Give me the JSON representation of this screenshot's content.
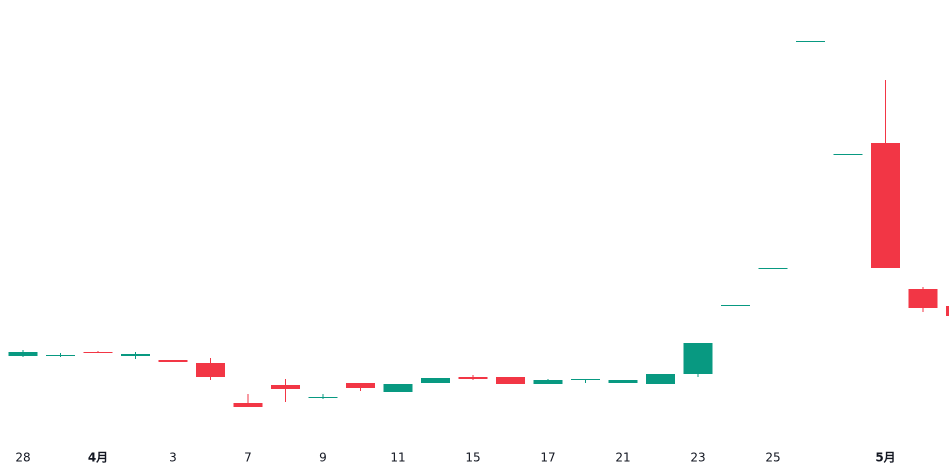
{
  "chart_data": {
    "type": "candlestick",
    "categories": [
      "28",
      null,
      "4月",
      null,
      "3",
      null,
      "7",
      null,
      "9",
      null,
      "11",
      null,
      "15",
      null,
      "17",
      null,
      "21",
      null,
      "23",
      null,
      "25",
      null,
      null,
      "5月",
      null,
      null
    ],
    "open": [
      94,
      94,
      98,
      94,
      90,
      87,
      47,
      65,
      52,
      67,
      58,
      67,
      73,
      73,
      66,
      70,
      67,
      66,
      76,
      144,
      182,
      409,
      296,
      307,
      161,
      144
    ],
    "high": [
      100,
      97,
      99,
      98,
      90,
      92,
      56,
      71,
      56,
      67,
      66,
      72,
      75,
      73,
      71,
      71,
      70,
      76,
      107,
      145,
      182,
      409,
      296,
      370,
      163,
      144
    ],
    "low": [
      93,
      93,
      97,
      91,
      88,
      70,
      43,
      48,
      51,
      59,
      58,
      67,
      70,
      66,
      66,
      67,
      67,
      66,
      73,
      144,
      182,
      409,
      296,
      182,
      138,
      134
    ],
    "close": [
      98,
      95,
      97,
      96,
      88,
      73,
      43,
      61,
      53,
      62,
      66,
      72,
      71,
      66,
      70,
      71,
      70,
      76,
      107,
      145,
      182,
      409,
      296,
      182,
      142,
      134
    ],
    "up_color": "#089981",
    "down_color": "#f23645",
    "ylim": [
      0,
      450
    ]
  }
}
